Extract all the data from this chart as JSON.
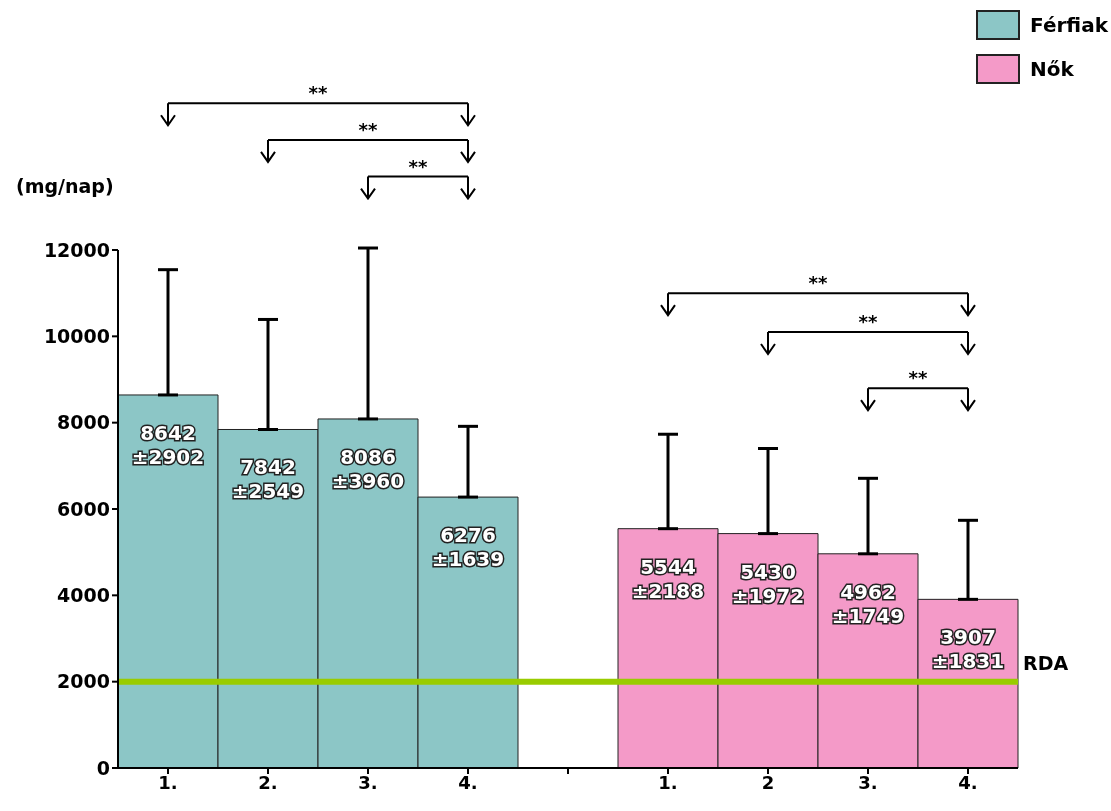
{
  "chart_data": {
    "type": "bar",
    "ylabel": "(mg/nap)",
    "categories": [
      "1.",
      "2.",
      "3.",
      "4.",
      null,
      "1.",
      "2",
      "3.",
      "4."
    ],
    "series": [
      {
        "name": "Férfiak",
        "color": "#8cc6c6",
        "values": [
          8642,
          7842,
          8086,
          6276,
          null,
          null,
          null,
          null,
          null
        ],
        "errors": [
          2902,
          2549,
          3960,
          1639,
          null,
          null,
          null,
          null,
          null
        ],
        "value_labels": [
          "8642 ±2902",
          "7842 ±2549",
          "8086 ±3960",
          "6276 ±1639",
          null,
          null,
          null,
          null,
          null
        ]
      },
      {
        "name": "Nők",
        "color": "#f49ac8",
        "values": [
          null,
          null,
          null,
          null,
          null,
          5544,
          5430,
          4962,
          3907
        ],
        "errors": [
          null,
          null,
          null,
          null,
          null,
          2188,
          1972,
          1749,
          1831
        ],
        "value_labels": [
          null,
          null,
          null,
          null,
          null,
          "5544 ±2188",
          "5430 ±1972",
          "4962 ±1749",
          "3907 ±1831"
        ]
      }
    ],
    "ylim": [
      0,
      12000
    ],
    "yticks": [
      0,
      2000,
      4000,
      6000,
      8000,
      10000,
      12000
    ],
    "grid": false,
    "legend": "top right",
    "ref_lines": [
      {
        "axis": "y",
        "value": 2000,
        "label": "RDA",
        "color": "#99cc00"
      }
    ],
    "annotations": [
      "**",
      "**",
      "**",
      "**",
      "**",
      "**"
    ]
  }
}
